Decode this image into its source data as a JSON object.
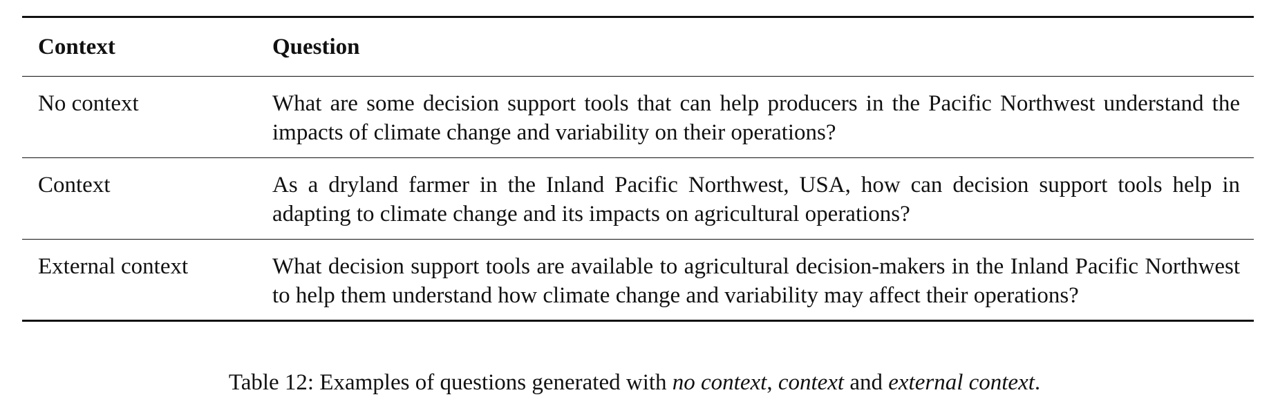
{
  "table": {
    "headers": [
      "Context",
      "Question"
    ],
    "rows": [
      {
        "context": "No context",
        "question": "What are some decision support tools that can help producers in the Pacific Northwest understand the impacts of climate change and variability on their operations?"
      },
      {
        "context": "Context",
        "question": "As a dryland farmer in the Inland Pacific Northwest, USA, how can decision support tools help in adapting to climate change and its impacts on agricultural operations?"
      },
      {
        "context": "External context",
        "question": "What decision support tools are available to agricultural decision-makers in the Inland Pacific Northwest to help them understand how climate change and variability may affect their operations?"
      }
    ]
  },
  "caption": {
    "prefix": "Table 12: Examples of questions generated with ",
    "term1": "no context",
    "sep1": ", ",
    "term2": "context",
    "sep2": " and ",
    "term3": "external context",
    "suffix": "."
  }
}
